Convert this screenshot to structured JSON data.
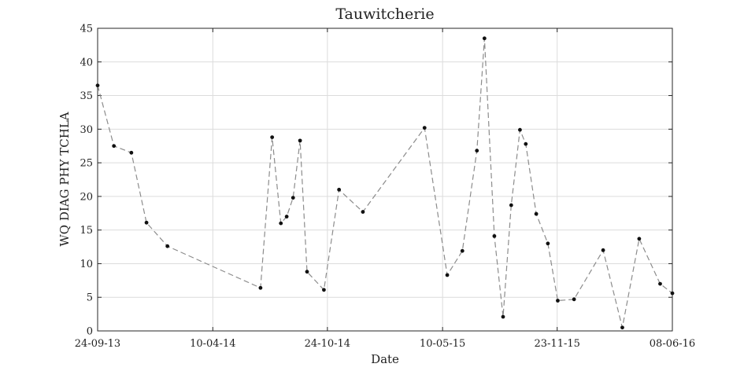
{
  "chart_data": {
    "type": "line",
    "title": "Tauwitcherie",
    "xlabel": "Date",
    "ylabel": "WQ DIAG PHY TCHLA",
    "x_type": "date",
    "xlim": [
      "2013-09-24",
      "2016-06-08"
    ],
    "ylim": [
      0,
      45
    ],
    "y_ticks": [
      0,
      5,
      10,
      15,
      20,
      25,
      30,
      35,
      40,
      45
    ],
    "x_ticks": [
      {
        "date": "2013-09-24",
        "label": "24-09-13"
      },
      {
        "date": "2014-04-10",
        "label": "10-04-14"
      },
      {
        "date": "2014-10-24",
        "label": "24-10-14"
      },
      {
        "date": "2015-05-10",
        "label": "10-05-15"
      },
      {
        "date": "2015-11-23",
        "label": "23-11-15"
      },
      {
        "date": "2016-06-08",
        "label": "08-06-16"
      }
    ],
    "grid": true,
    "line_style": "dashed",
    "line_color": "#8c8c8c",
    "marker_color": "#111111",
    "series": [
      {
        "x": [
          "2013-09-24",
          "2013-10-22",
          "2013-11-21",
          "2013-12-17",
          "2014-01-22",
          "2014-07-01",
          "2014-07-21",
          "2014-08-05",
          "2014-08-15",
          "2014-08-26",
          "2014-09-07",
          "2014-09-19",
          "2014-10-18",
          "2014-11-13",
          "2014-12-24",
          "2015-04-09",
          "2015-05-18",
          "2015-06-13",
          "2015-07-08",
          "2015-07-21",
          "2015-08-07",
          "2015-08-22",
          "2015-09-05",
          "2015-09-20",
          "2015-09-30",
          "2015-10-18",
          "2015-11-07",
          "2015-11-24",
          "2015-12-22",
          "2016-02-10",
          "2016-03-14",
          "2016-04-12",
          "2016-05-18",
          "2016-06-08"
        ],
        "y": [
          36.5,
          27.5,
          26.5,
          16.1,
          12.6,
          6.4,
          28.8,
          16.0,
          17.0,
          19.8,
          28.3,
          8.8,
          6.1,
          21.0,
          17.7,
          30.2,
          8.3,
          11.9,
          26.8,
          43.5,
          14.1,
          2.1,
          18.7,
          29.9,
          27.8,
          17.4,
          13.0,
          4.5,
          4.7,
          12.0,
          0.5,
          13.7,
          7.0,
          5.6
        ]
      }
    ]
  }
}
